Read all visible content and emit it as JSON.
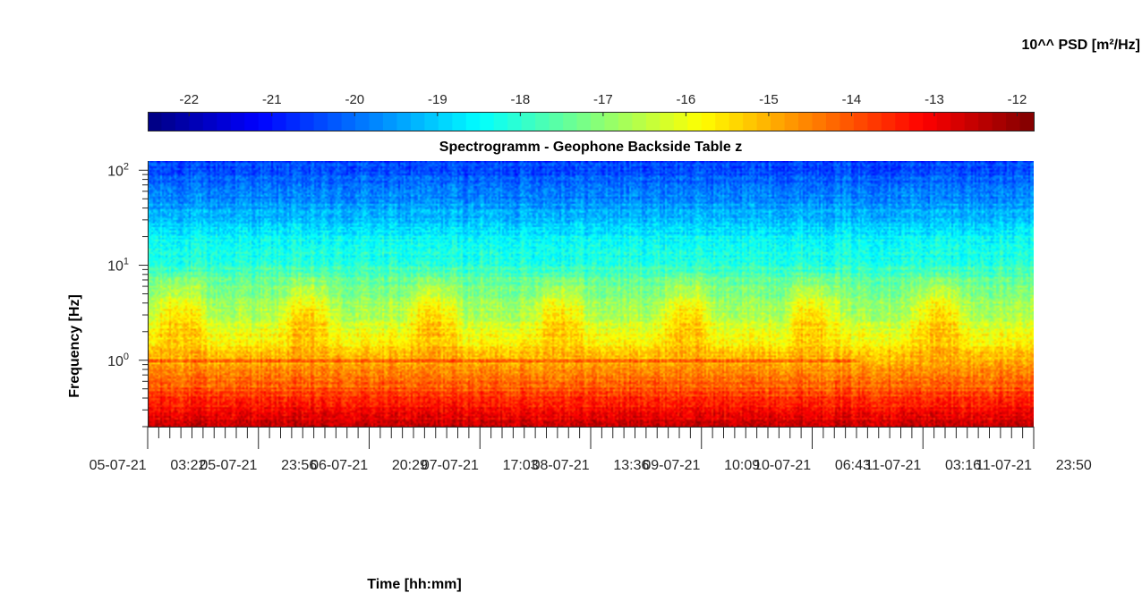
{
  "chart_data": {
    "type": "heatmap",
    "title": "Spectrogramm - Geophone Backside Table z",
    "xlabel": "Time [hh:mm]",
    "ylabel": "Frequency [Hz]",
    "x_tick_labels": [
      "05-07-21 03:22",
      "05-07-21 23:56",
      "06-07-21 20:29",
      "07-07-21 17:03",
      "08-07-21 13:36",
      "09-07-21 10:09",
      "10-07-21 06:43",
      "11-07-21 03:16",
      "11-07-21 23:50"
    ],
    "y_scale": "log",
    "y_ticks": [
      1,
      10,
      100
    ],
    "y_tick_labels": [
      {
        "base": "10",
        "exp": "0"
      },
      {
        "base": "10",
        "exp": "1"
      },
      {
        "base": "10",
        "exp": "2"
      }
    ],
    "ylim": [
      0.2,
      125
    ],
    "colorbar": {
      "label": "10^^ PSD [m²/Hz]",
      "ticks": [
        -22,
        -21,
        -20,
        -19,
        -18,
        -17,
        -16,
        -15,
        -14,
        -13,
        -12
      ],
      "tick_labels": [
        "-22",
        "-21",
        "-20",
        "-19",
        "-18",
        "-17",
        "-16",
        "-15",
        "-14",
        "-13",
        "-12"
      ],
      "range": [
        -22.5,
        -11.8
      ],
      "colormap": "jet",
      "placement": "top"
    },
    "daily_activity_bands_hz": [
      1.5,
      6
    ],
    "low_frequency_floor_level": -12.5,
    "high_frequency_level": -19.5
  }
}
